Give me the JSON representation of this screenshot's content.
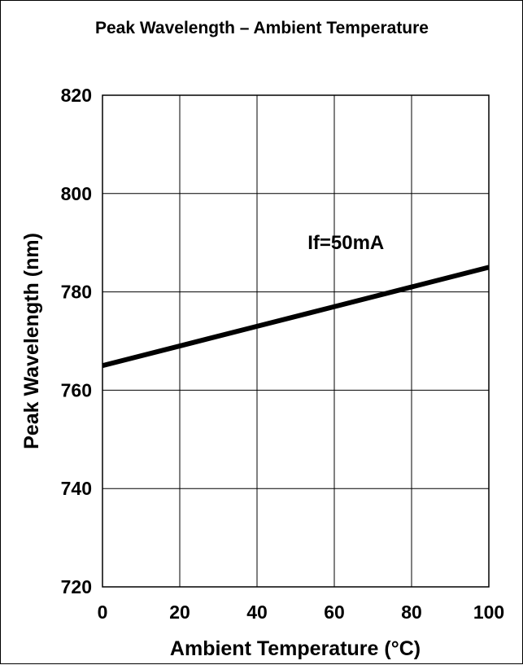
{
  "chart_data": {
    "type": "line",
    "title": "Peak Wavelength – Ambient Temperature",
    "xlabel": "Ambient Temperature (°C)",
    "ylabel": "Peak Wavelength (nm)",
    "xlim": [
      0,
      100
    ],
    "ylim": [
      720,
      820
    ],
    "xticks": [
      0,
      20,
      40,
      60,
      80,
      100
    ],
    "yticks": [
      720,
      740,
      760,
      780,
      800,
      820
    ],
    "grid": true,
    "annotation": {
      "text": "If=50mA",
      "x": 63,
      "y": 790
    },
    "series": [
      {
        "x": [
          0,
          20,
          40,
          60,
          80,
          100
        ],
        "values": [
          765,
          769,
          773,
          777,
          781,
          785
        ]
      }
    ],
    "colors": {
      "line": "#000000",
      "grid": "#000000"
    }
  }
}
